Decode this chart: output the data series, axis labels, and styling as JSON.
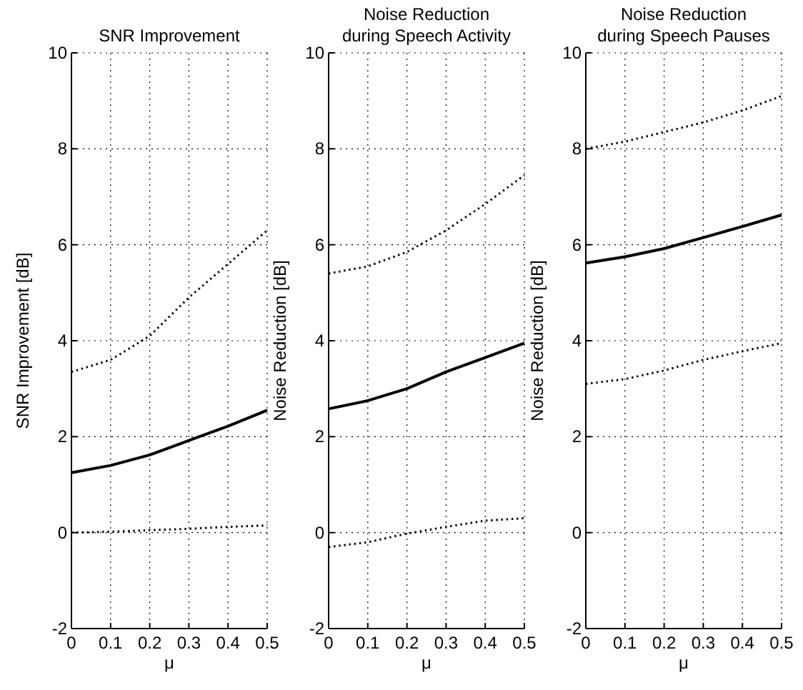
{
  "chart_data": [
    {
      "type": "line",
      "title": "SNR Improvement",
      "xlabel": "μ",
      "ylabel": "SNR Improvement [dB]",
      "x": [
        0,
        0.1,
        0.2,
        0.3,
        0.4,
        0.5
      ],
      "xlim": [
        0,
        0.5
      ],
      "xticks": [
        0,
        0.1,
        0.2,
        0.3,
        0.4,
        0.5
      ],
      "ylim": [
        -2,
        10
      ],
      "yticks": [
        -2,
        0,
        2,
        4,
        6,
        8,
        10
      ],
      "grid": true,
      "marker": "none",
      "series": [
        {
          "color": "#000000",
          "line_style": "solid",
          "values": [
            1.25,
            1.4,
            1.62,
            1.92,
            2.22,
            2.55
          ]
        },
        {
          "color": "#000000",
          "line_style": "dotted",
          "values": [
            3.35,
            3.6,
            4.1,
            4.9,
            5.6,
            6.3
          ]
        },
        {
          "color": "#000000",
          "line_style": "dotted",
          "values": [
            0,
            0.02,
            0.05,
            0.08,
            0.12,
            0.15
          ]
        }
      ]
    },
    {
      "type": "line",
      "title": "Noise Reduction\nduring Speech Activity",
      "xlabel": "μ",
      "ylabel": "Noise Reduction [dB]",
      "x": [
        0,
        0.1,
        0.2,
        0.3,
        0.4,
        0.5
      ],
      "xlim": [
        0,
        0.5
      ],
      "xticks": [
        0,
        0.1,
        0.2,
        0.3,
        0.4,
        0.5
      ],
      "ylim": [
        -2,
        10
      ],
      "yticks": [
        -2,
        0,
        2,
        4,
        6,
        8,
        10
      ],
      "grid": true,
      "marker": "none",
      "series": [
        {
          "color": "#000000",
          "line_style": "solid",
          "values": [
            2.58,
            2.75,
            3.0,
            3.35,
            3.65,
            3.95
          ]
        },
        {
          "color": "#000000",
          "line_style": "dotted",
          "values": [
            5.4,
            5.55,
            5.85,
            6.3,
            6.85,
            7.45
          ]
        },
        {
          "color": "#000000",
          "line_style": "dotted",
          "values": [
            -0.3,
            -0.2,
            -0.02,
            0.12,
            0.25,
            0.3
          ]
        }
      ]
    },
    {
      "type": "line",
      "title": "Noise Reduction\nduring Speech Pauses",
      "xlabel": "μ",
      "ylabel": "Noise Reduction [dB]",
      "x": [
        0,
        0.1,
        0.2,
        0.3,
        0.4,
        0.5
      ],
      "xlim": [
        0,
        0.5
      ],
      "xticks": [
        0,
        0.1,
        0.2,
        0.3,
        0.4,
        0.5
      ],
      "ylim": [
        -2,
        10
      ],
      "yticks": [
        -2,
        0,
        2,
        4,
        6,
        8,
        10
      ],
      "grid": true,
      "marker": "none",
      "series": [
        {
          "color": "#000000",
          "line_style": "solid",
          "values": [
            5.62,
            5.75,
            5.92,
            6.15,
            6.38,
            6.62
          ]
        },
        {
          "color": "#000000",
          "line_style": "dotted",
          "values": [
            8.0,
            8.15,
            8.35,
            8.55,
            8.8,
            9.1
          ]
        },
        {
          "color": "#000000",
          "line_style": "dotted",
          "values": [
            3.1,
            3.2,
            3.38,
            3.6,
            3.78,
            3.95
          ]
        }
      ]
    }
  ]
}
